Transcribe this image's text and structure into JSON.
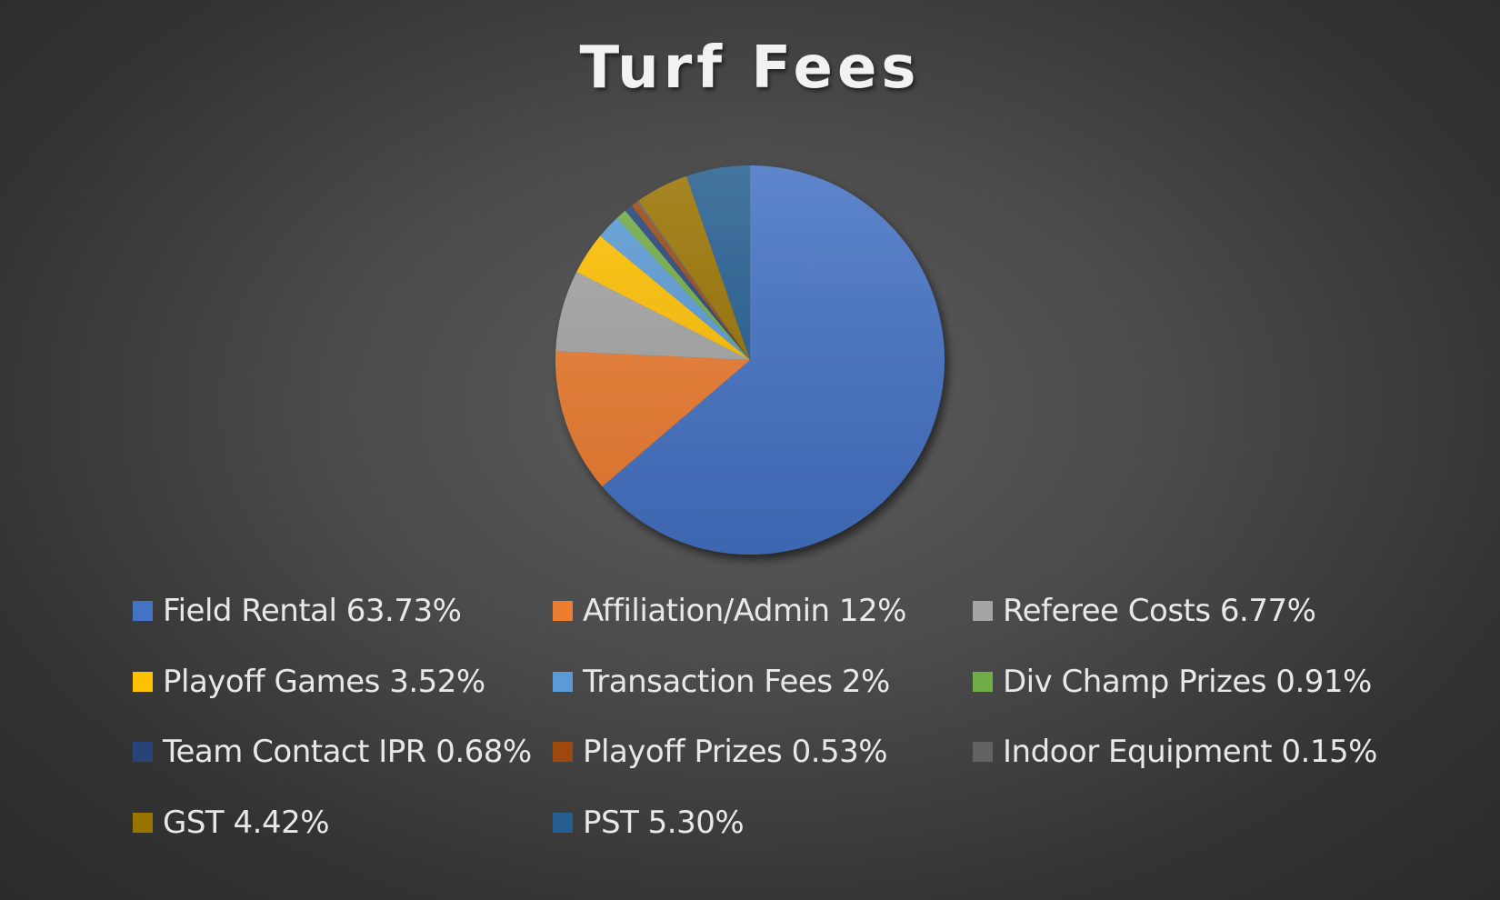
{
  "chart_data": {
    "type": "pie",
    "title": "Turf Fees",
    "slices": [
      {
        "label": "Field Rental 63.73%",
        "value": 63.73,
        "color": "#4472c4"
      },
      {
        "label": "Affiliation/Admin 12%",
        "value": 12,
        "color": "#ed7d31"
      },
      {
        "label": "Referee Costs 6.77%",
        "value": 6.77,
        "color": "#a5a5a5"
      },
      {
        "label": "Playoff Games 3.52%",
        "value": 3.52,
        "color": "#ffc000"
      },
      {
        "label": "Transaction Fees 2%",
        "value": 2,
        "color": "#5b9bd5"
      },
      {
        "label": "Div Champ Prizes 0.91%",
        "value": 0.91,
        "color": "#70ad47"
      },
      {
        "label": "Team Contact IPR 0.68%",
        "value": 0.68,
        "color": "#264478"
      },
      {
        "label": "Playoff Prizes 0.53%",
        "value": 0.53,
        "color": "#9e480e"
      },
      {
        "label": "Indoor Equipment 0.15%",
        "value": 0.15,
        "color": "#636363"
      },
      {
        "label": "GST 4.42%",
        "value": 4.42,
        "color": "#997300"
      },
      {
        "label": "PST 5.30%",
        "value": 5.3,
        "color": "#255e91"
      }
    ],
    "legend_position": "bottom"
  }
}
